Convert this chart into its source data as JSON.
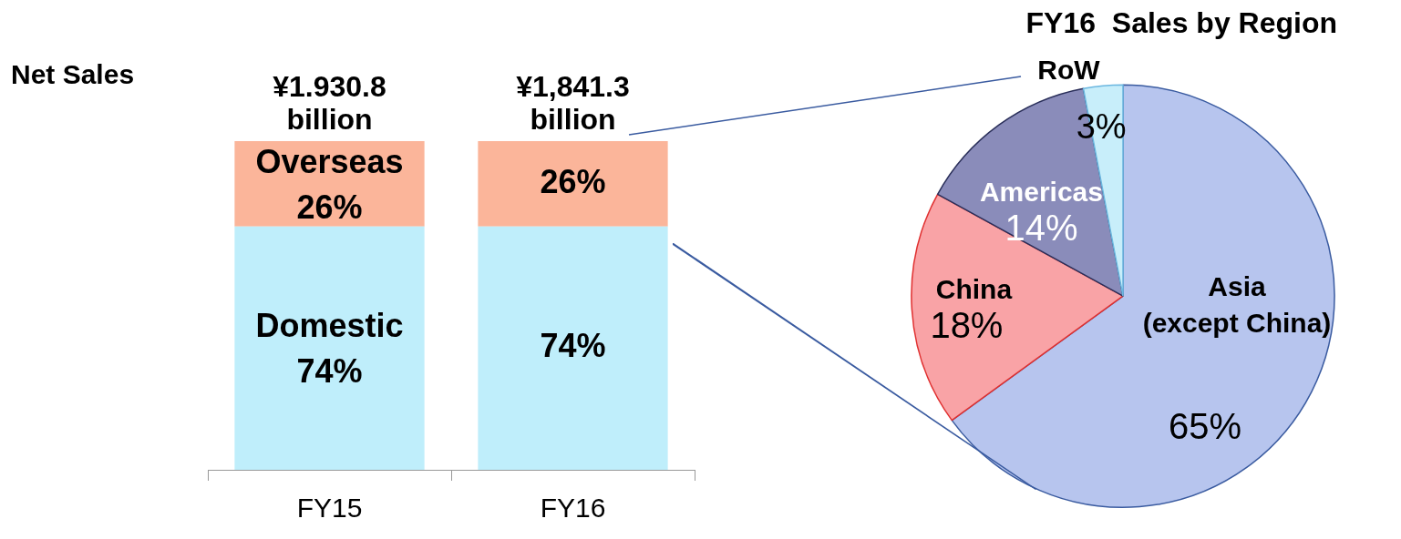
{
  "chart_data": [
    {
      "type": "bar",
      "stacked": true,
      "categories": [
        "FY15",
        "FY16"
      ],
      "series": [
        {
          "name": "Domestic",
          "color": "#bfeefb",
          "values": [
            74,
            74
          ],
          "value_labels": [
            "74%",
            "74%"
          ]
        },
        {
          "name": "Overseas",
          "color": "#fbb59a",
          "values": [
            26,
            26
          ],
          "value_labels": [
            "26%",
            "26%"
          ]
        }
      ],
      "annotations": [
        "Net Sales",
        {
          "text": "¥1.930.8 billion",
          "x": "FY15",
          "y": 100
        },
        {
          "text": "¥1,841.3 billion",
          "x": "FY16",
          "y": 100
        }
      ],
      "grid": false,
      "legend": false
    },
    {
      "type": "pie",
      "title": "FY16  Sales by Region",
      "categories": [
        "Asia (except China)",
        "China",
        "Americas",
        "RoW"
      ],
      "values": [
        65,
        18,
        14,
        3
      ],
      "colors": [
        "#b7c5ee",
        "#f9a3a6",
        "#8a8cba",
        "#c8eefa"
      ],
      "value_labels": [
        "65%",
        "18%",
        "14%",
        "3%"
      ],
      "legend": false
    }
  ]
}
